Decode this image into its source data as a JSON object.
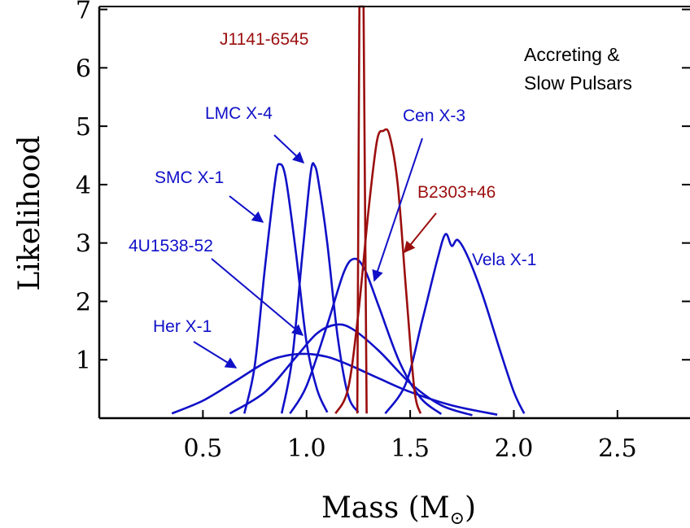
{
  "chart_data": {
    "type": "line",
    "xlabel": "Mass (M",
    "xlabel_sub": "⊙",
    "xlabel_close": ")",
    "ylabel": "Likelihood",
    "xlim": [
      0.0,
      2.85
    ],
    "ylim": [
      0.0,
      7.05
    ],
    "x_ticks": [
      0.5,
      1.0,
      1.5,
      2.0,
      2.5
    ],
    "x_tick_labels": [
      "0.5",
      "1.0",
      "1.5",
      "2.0",
      "2.5"
    ],
    "y_ticks": [
      1,
      2,
      3,
      4,
      5,
      6,
      7
    ],
    "y_tick_labels": [
      "1",
      "2",
      "3",
      "4",
      "5",
      "6",
      "7"
    ],
    "annotation": {
      "line1": "Accreting &",
      "line2": "Slow Pulsars"
    },
    "colors": {
      "accreting": "#1010c8",
      "radio": "#9b0e0e"
    },
    "series": [
      {
        "name": "Her X-1",
        "color": "#1010c8",
        "points": [
          [
            0.35,
            0.08
          ],
          [
            0.5,
            0.3
          ],
          [
            0.65,
            0.62
          ],
          [
            0.8,
            0.95
          ],
          [
            0.9,
            1.07
          ],
          [
            1.0,
            1.1
          ],
          [
            1.1,
            1.05
          ],
          [
            1.2,
            0.92
          ],
          [
            1.35,
            0.68
          ],
          [
            1.5,
            0.45
          ],
          [
            1.7,
            0.22
          ],
          [
            1.92,
            0.06
          ]
        ]
      },
      {
        "name": "4U1538-52",
        "color": "#1010c8",
        "points": [
          [
            0.63,
            0.08
          ],
          [
            0.8,
            0.45
          ],
          [
            0.95,
            1.05
          ],
          [
            1.05,
            1.45
          ],
          [
            1.14,
            1.6
          ],
          [
            1.22,
            1.53
          ],
          [
            1.35,
            1.15
          ],
          [
            1.5,
            0.6
          ],
          [
            1.65,
            0.22
          ],
          [
            1.8,
            0.05
          ]
        ]
      },
      {
        "name": "SMC X-1",
        "color": "#1010c8",
        "points": [
          [
            0.7,
            0.08
          ],
          [
            0.75,
            0.9
          ],
          [
            0.8,
            2.6
          ],
          [
            0.85,
            4.1
          ],
          [
            0.87,
            4.35
          ],
          [
            0.9,
            4.1
          ],
          [
            0.95,
            2.8
          ],
          [
            1.0,
            1.3
          ],
          [
            1.05,
            0.5
          ],
          [
            1.1,
            0.1
          ]
        ]
      },
      {
        "name": "LMC X-4",
        "color": "#1010c8",
        "points": [
          [
            0.88,
            0.08
          ],
          [
            0.93,
            1.0
          ],
          [
            0.98,
            2.8
          ],
          [
            1.02,
            4.2
          ],
          [
            1.04,
            4.32
          ],
          [
            1.06,
            4.0
          ],
          [
            1.1,
            3.0
          ],
          [
            1.15,
            1.4
          ],
          [
            1.2,
            0.4
          ],
          [
            1.25,
            0.1
          ]
        ]
      },
      {
        "name": "Cen X-3",
        "color": "#1010c8",
        "points": [
          [
            0.92,
            0.08
          ],
          [
            1.0,
            0.55
          ],
          [
            1.1,
            1.6
          ],
          [
            1.18,
            2.5
          ],
          [
            1.23,
            2.73
          ],
          [
            1.28,
            2.55
          ],
          [
            1.35,
            1.9
          ],
          [
            1.45,
            0.95
          ],
          [
            1.55,
            0.35
          ],
          [
            1.65,
            0.07
          ]
        ]
      },
      {
        "name": "Vela X-1",
        "color": "#1010c8",
        "points": [
          [
            1.38,
            0.08
          ],
          [
            1.48,
            0.6
          ],
          [
            1.56,
            1.7
          ],
          [
            1.63,
            2.7
          ],
          [
            1.67,
            3.15
          ],
          [
            1.7,
            2.95
          ],
          [
            1.73,
            3.05
          ],
          [
            1.78,
            2.75
          ],
          [
            1.85,
            2.1
          ],
          [
            1.93,
            1.2
          ],
          [
            2.0,
            0.45
          ],
          [
            2.05,
            0.08
          ]
        ]
      },
      {
        "name": "B2303+46",
        "color": "#9b0e0e",
        "points": [
          [
            1.14,
            0.08
          ],
          [
            1.2,
            0.5
          ],
          [
            1.25,
            1.8
          ],
          [
            1.3,
            3.6
          ],
          [
            1.34,
            4.75
          ],
          [
            1.37,
            4.92
          ],
          [
            1.4,
            4.85
          ],
          [
            1.44,
            4.0
          ],
          [
            1.48,
            2.2
          ],
          [
            1.52,
            0.5
          ],
          [
            1.55,
            0.08
          ]
        ]
      },
      {
        "name": "J1141-6545",
        "color": "#9b0e0e",
        "points": [
          [
            1.245,
            0.08
          ],
          [
            1.255,
            7.05
          ],
          [
            1.275,
            7.05
          ],
          [
            1.29,
            0.08
          ]
        ]
      }
    ],
    "labels": [
      {
        "text": "J1141-6545",
        "color": "#9b0e0e"
      },
      {
        "text": "LMC X-4",
        "color": "#1010c8"
      },
      {
        "text": "Cen X-3",
        "color": "#1010c8"
      },
      {
        "text": "SMC X-1",
        "color": "#1010c8"
      },
      {
        "text": "B2303+46",
        "color": "#9b0e0e"
      },
      {
        "text": "4U1538-52",
        "color": "#1010c8"
      },
      {
        "text": "Vela X-1",
        "color": "#1010c8"
      },
      {
        "text": "Her X-1",
        "color": "#1010c8"
      }
    ]
  }
}
